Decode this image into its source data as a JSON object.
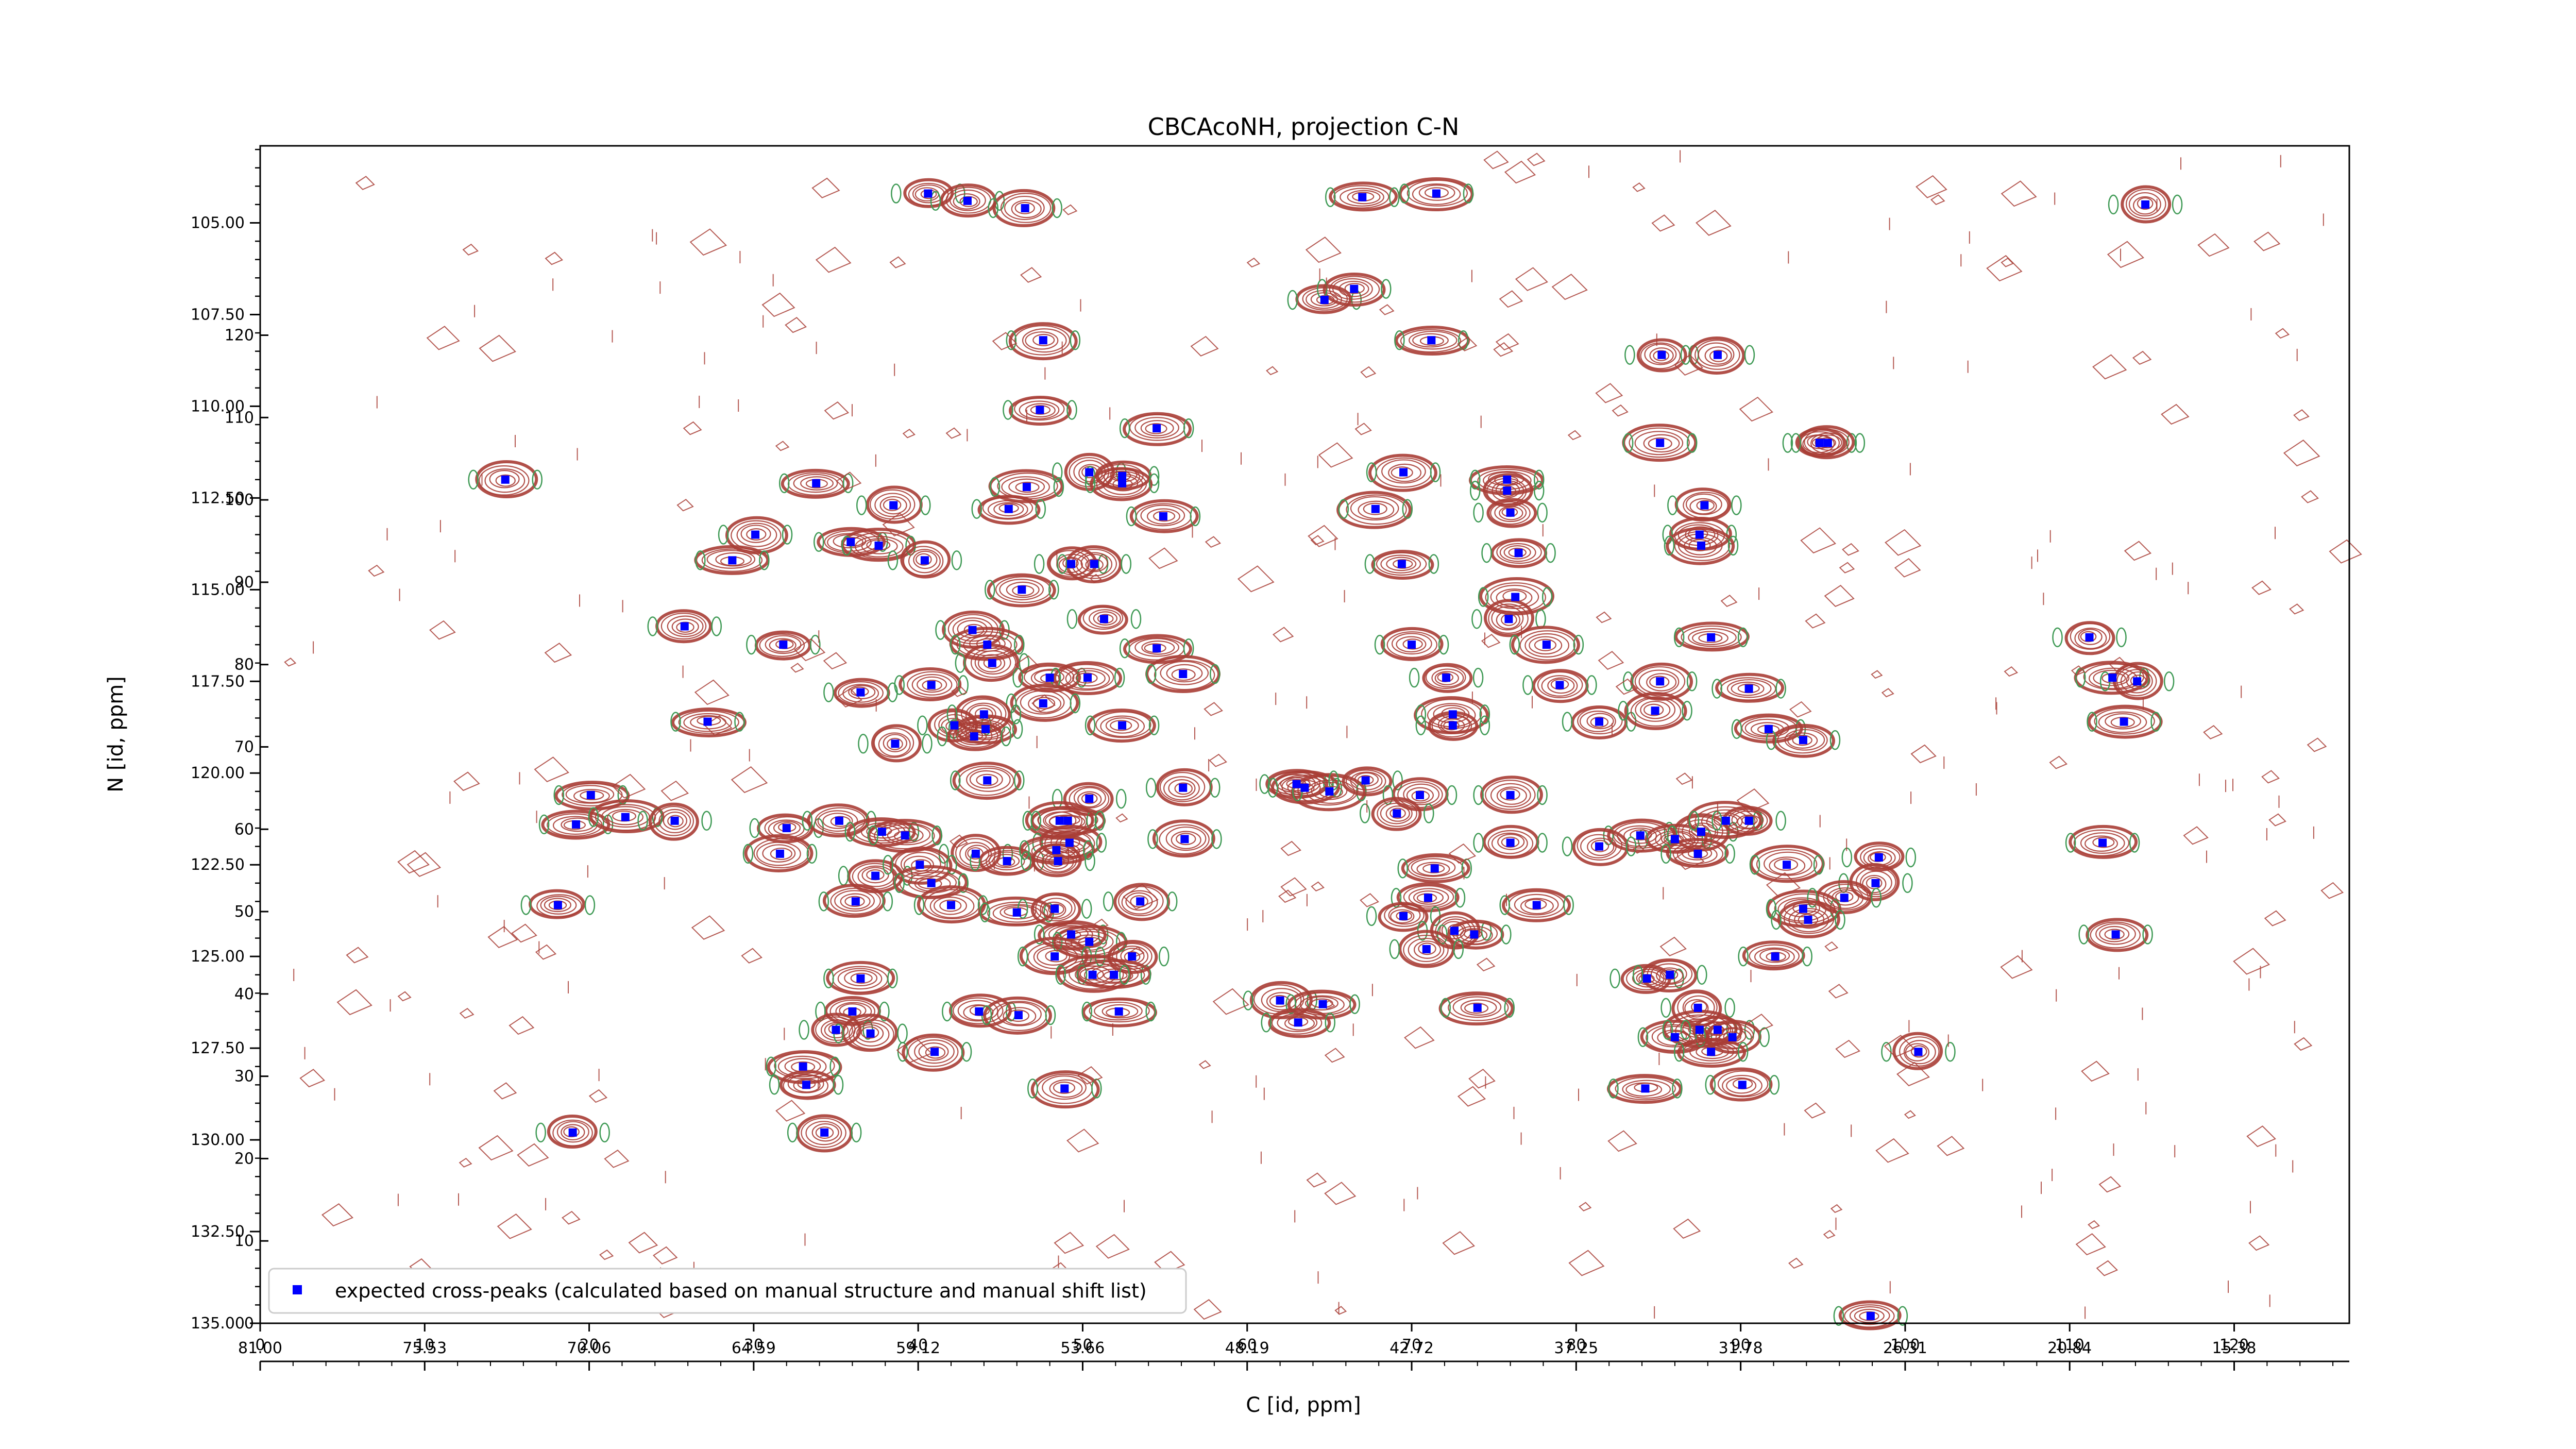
{
  "chart_data": {
    "type": "scatter",
    "title": "CBCAcoNH, projection C-N",
    "xlabel": "C [id, ppm]",
    "ylabel": "N [id, ppm]",
    "x_primary": {
      "label": "",
      "lim": [
        0,
        127
      ],
      "ticks": [
        0,
        10,
        20,
        30,
        40,
        50,
        60,
        70,
        80,
        90,
        100,
        110,
        120
      ]
    },
    "x_secondary": {
      "tick_labels": [
        "81.00",
        "75.53",
        "70.06",
        "64.59",
        "59.12",
        "53.66",
        "48.19",
        "42.72",
        "37.25",
        "31.78",
        "26.31",
        "20.84",
        "15.38"
      ]
    },
    "y_left": {
      "lim": [
        102.9,
        135.0
      ],
      "ticks": [
        "105.00",
        "107.50",
        "110.00",
        "112.50",
        "115.00",
        "117.50",
        "120.00",
        "122.50",
        "125.00",
        "127.50",
        "130.00",
        "132.50",
        "135.00"
      ]
    },
    "y_right": {
      "lim": [
        0,
        143
      ],
      "ticks": [
        "0",
        "10",
        "20",
        "30",
        "40",
        "50",
        "60",
        "70",
        "80",
        "90",
        "100",
        "110",
        "120"
      ]
    },
    "grid": false,
    "legend": {
      "placement": "lower-left",
      "entries": [
        "expected cross-peaks (calculated based on manual structure and manual shift list)"
      ]
    },
    "colors": {
      "peaks": "#0000ff",
      "contour_positive": "#a83d35",
      "contour_negative": "#3f9a55",
      "axis": "#000000"
    },
    "series": [
      {
        "name": "expected cross-peaks (calculated based on manual structure and manual shift list)",
        "points": [
          [
            40.6,
            104.2
          ],
          [
            43.0,
            104.4
          ],
          [
            46.5,
            104.6
          ],
          [
            67.0,
            104.3
          ],
          [
            71.5,
            104.2
          ],
          [
            114.6,
            104.5
          ],
          [
            64.7,
            107.1
          ],
          [
            66.5,
            106.8
          ],
          [
            47.6,
            108.2
          ],
          [
            71.2,
            108.2
          ],
          [
            85.2,
            108.6
          ],
          [
            88.6,
            108.6
          ],
          [
            47.4,
            110.1
          ],
          [
            54.5,
            110.6
          ],
          [
            85.1,
            111.0
          ],
          [
            94.8,
            111.0
          ],
          [
            95.3,
            111.0
          ],
          [
            14.9,
            112.0
          ],
          [
            33.8,
            112.1
          ],
          [
            46.6,
            112.2
          ],
          [
            50.4,
            111.8
          ],
          [
            52.4,
            111.9
          ],
          [
            52.4,
            112.1
          ],
          [
            69.5,
            111.8
          ],
          [
            75.8,
            112.0
          ],
          [
            75.8,
            112.3
          ],
          [
            38.5,
            112.7
          ],
          [
            45.5,
            112.8
          ],
          [
            54.9,
            113.0
          ],
          [
            67.8,
            112.8
          ],
          [
            76.0,
            112.9
          ],
          [
            87.8,
            112.7
          ],
          [
            30.1,
            113.5
          ],
          [
            35.9,
            113.7
          ],
          [
            37.6,
            113.8
          ],
          [
            40.4,
            114.2
          ],
          [
            76.5,
            114.0
          ],
          [
            87.5,
            113.5
          ],
          [
            87.6,
            113.8
          ],
          [
            28.7,
            114.2
          ],
          [
            49.3,
            114.3
          ],
          [
            50.7,
            114.3
          ],
          [
            69.4,
            114.3
          ],
          [
            46.3,
            115.0
          ],
          [
            76.3,
            115.2
          ],
          [
            51.3,
            115.8
          ],
          [
            25.8,
            116.0
          ],
          [
            43.3,
            116.1
          ],
          [
            54.5,
            116.6
          ],
          [
            44.2,
            116.5
          ],
          [
            75.9,
            115.8
          ],
          [
            31.8,
            116.5
          ],
          [
            70.0,
            116.5
          ],
          [
            78.2,
            116.5
          ],
          [
            88.2,
            116.3
          ],
          [
            111.2,
            116.3
          ],
          [
            44.5,
            117.0
          ],
          [
            48.0,
            117.4
          ],
          [
            50.3,
            117.4
          ],
          [
            56.1,
            117.3
          ],
          [
            72.1,
            117.4
          ],
          [
            79.0,
            117.6
          ],
          [
            85.1,
            117.5
          ],
          [
            90.5,
            117.7
          ],
          [
            112.6,
            117.4
          ],
          [
            114.1,
            117.5
          ],
          [
            36.5,
            117.8
          ],
          [
            40.8,
            117.6
          ],
          [
            47.6,
            118.1
          ],
          [
            27.2,
            118.6
          ],
          [
            42.2,
            118.7
          ],
          [
            44.0,
            118.4
          ],
          [
            44.1,
            118.8
          ],
          [
            52.4,
            118.7
          ],
          [
            72.5,
            118.4
          ],
          [
            72.5,
            118.7
          ],
          [
            81.4,
            118.6
          ],
          [
            84.8,
            118.3
          ],
          [
            91.7,
            118.8
          ],
          [
            113.3,
            118.6
          ],
          [
            38.6,
            119.2
          ],
          [
            43.4,
            119.0
          ],
          [
            93.8,
            119.1
          ],
          [
            44.2,
            120.2
          ],
          [
            20.1,
            120.6
          ],
          [
            50.4,
            120.7
          ],
          [
            56.1,
            120.4
          ],
          [
            63.0,
            120.3
          ],
          [
            63.5,
            120.4
          ],
          [
            65.0,
            120.5
          ],
          [
            67.2,
            120.2
          ],
          [
            70.5,
            120.6
          ],
          [
            76.0,
            120.6
          ],
          [
            19.2,
            121.4
          ],
          [
            22.2,
            121.2
          ],
          [
            25.2,
            121.3
          ],
          [
            32.0,
            121.5
          ],
          [
            35.2,
            121.3
          ],
          [
            48.6,
            121.3
          ],
          [
            49.1,
            121.3
          ],
          [
            69.1,
            121.1
          ],
          [
            87.6,
            121.6
          ],
          [
            86.0,
            121.8
          ],
          [
            83.9,
            121.7
          ],
          [
            89.1,
            121.3
          ],
          [
            90.5,
            121.3
          ],
          [
            76.0,
            121.9
          ],
          [
            56.2,
            121.8
          ],
          [
            37.8,
            121.6
          ],
          [
            39.2,
            121.7
          ],
          [
            43.5,
            122.2
          ],
          [
            45.4,
            122.4
          ],
          [
            49.2,
            121.9
          ],
          [
            31.6,
            122.2
          ],
          [
            48.4,
            122.1
          ],
          [
            48.5,
            122.4
          ],
          [
            81.4,
            122.0
          ],
          [
            87.4,
            122.2
          ],
          [
            112.0,
            121.9
          ],
          [
            92.8,
            122.5
          ],
          [
            98.4,
            122.3
          ],
          [
            37.4,
            122.8
          ],
          [
            40.1,
            122.5
          ],
          [
            71.4,
            122.6
          ],
          [
            40.8,
            123.0
          ],
          [
            98.2,
            123.0
          ],
          [
            18.1,
            123.6
          ],
          [
            36.2,
            123.5
          ],
          [
            42.0,
            123.6
          ],
          [
            46.0,
            123.8
          ],
          [
            48.3,
            123.7
          ],
          [
            53.5,
            123.5
          ],
          [
            71.0,
            123.4
          ],
          [
            77.6,
            123.6
          ],
          [
            93.8,
            123.7
          ],
          [
            69.5,
            123.9
          ],
          [
            96.3,
            123.4
          ],
          [
            94.1,
            124.0
          ],
          [
            49.3,
            124.4
          ],
          [
            50.4,
            124.6
          ],
          [
            72.6,
            124.3
          ],
          [
            73.8,
            124.4
          ],
          [
            112.8,
            124.4
          ],
          [
            48.3,
            125.0
          ],
          [
            51.9,
            125.5
          ],
          [
            53.0,
            125.0
          ],
          [
            70.9,
            124.8
          ],
          [
            92.1,
            125.0
          ],
          [
            36.5,
            125.6
          ],
          [
            50.6,
            125.5
          ],
          [
            84.3,
            125.6
          ],
          [
            85.7,
            125.5
          ],
          [
            62.0,
            126.2
          ],
          [
            64.6,
            126.3
          ],
          [
            74.0,
            126.4
          ],
          [
            87.4,
            126.4
          ],
          [
            36.0,
            126.5
          ],
          [
            43.7,
            126.5
          ],
          [
            46.1,
            126.6
          ],
          [
            52.2,
            126.5
          ],
          [
            35.0,
            127.0
          ],
          [
            37.1,
            127.1
          ],
          [
            63.1,
            126.8
          ],
          [
            86.0,
            127.2
          ],
          [
            87.5,
            127.0
          ],
          [
            88.6,
            127.0
          ],
          [
            89.5,
            127.2
          ],
          [
            41.0,
            127.6
          ],
          [
            88.2,
            127.6
          ],
          [
            33.0,
            128.0
          ],
          [
            100.8,
            127.6
          ],
          [
            33.2,
            128.5
          ],
          [
            90.1,
            128.5
          ],
          [
            48.9,
            128.6
          ],
          [
            84.2,
            128.6
          ],
          [
            19.0,
            129.8
          ],
          [
            34.3,
            129.8
          ],
          [
            97.9,
            134.8
          ]
        ]
      }
    ]
  }
}
